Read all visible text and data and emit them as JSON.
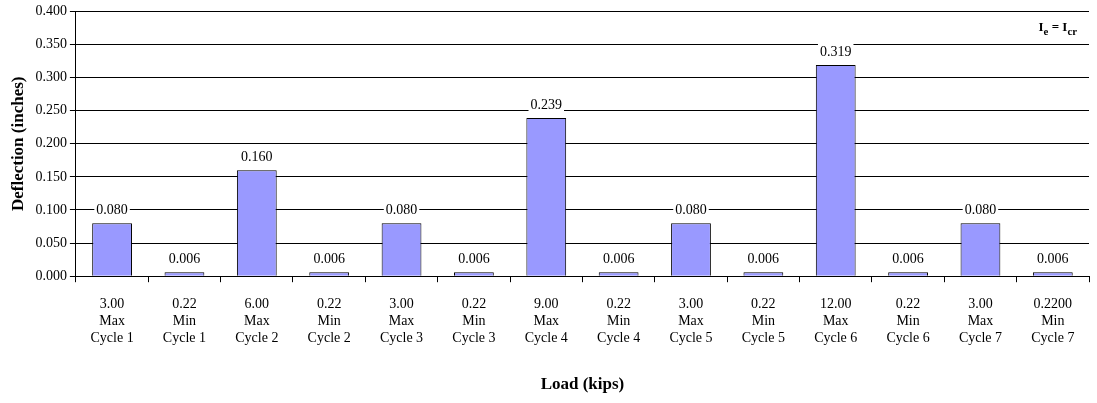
{
  "chart_data": {
    "type": "bar",
    "xlabel": "Load (kips)",
    "ylabel": "Deflection (inches)",
    "categories": [
      "3.00\nMax\nCycle 1",
      "0.22\nMin\nCycle 1",
      "6.00\nMax\nCycle 2",
      "0.22\nMin\nCycle 2",
      "3.00\nMax\nCycle 3",
      "0.22\nMin\nCycle 3",
      "9.00\nMax\nCycle 4",
      "0.22\nMin\nCycle 4",
      "3.00\nMax\nCycle 5",
      "0.22\nMin\nCycle 5",
      "12.00\nMax\nCycle 6",
      "0.22\nMin\nCycle 6",
      "3.00\nMax\nCycle 7",
      "0.2200\nMin\nCycle 7"
    ],
    "values": [
      0.08,
      0.006,
      0.16,
      0.006,
      0.08,
      0.006,
      0.239,
      0.006,
      0.08,
      0.006,
      0.319,
      0.006,
      0.08,
      0.006
    ],
    "value_labels": [
      "0.080",
      "0.006",
      "0.160",
      "0.006",
      "0.080",
      "0.006",
      "0.239",
      "0.006",
      "0.080",
      "0.006",
      "0.319",
      "0.006",
      "0.080",
      "0.006"
    ],
    "color": "#9999ff",
    "ylim": [
      0,
      0.4
    ],
    "yticks": [
      {
        "value": 0,
        "label": "0.000"
      },
      {
        "value": 0.05,
        "label": "0.050"
      },
      {
        "value": 0.1,
        "label": "0.100"
      },
      {
        "value": 0.15,
        "label": "0.150"
      },
      {
        "value": 0.2,
        "label": "0.200"
      },
      {
        "value": 0.25,
        "label": "0.250"
      },
      {
        "value": 0.3,
        "label": "0.300"
      },
      {
        "value": 0.35,
        "label": "0.350"
      },
      {
        "value": 0.4,
        "label": "0.400"
      }
    ],
    "grid": "y",
    "legend": false,
    "annotations": [
      "I$_{e}$ = I$_{cr}$"
    ]
  }
}
